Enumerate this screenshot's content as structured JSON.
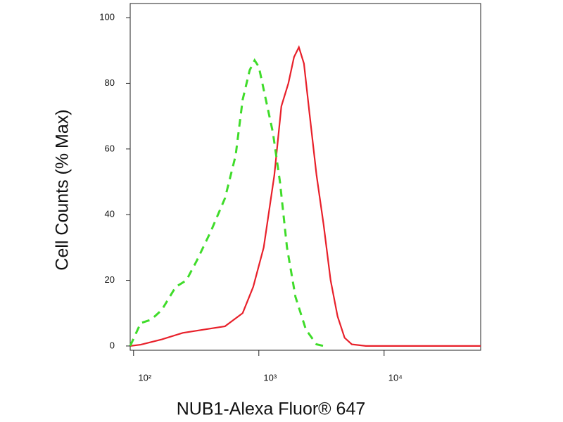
{
  "chart_data": {
    "type": "line",
    "xlabel": "NUB1-Alexa Fluor® 647",
    "ylabel": "Cell Counts (% Max)",
    "xscale": "log",
    "xlim": [
      94,
      59000
    ],
    "ylim": [
      -1.3,
      104.3
    ],
    "xticks": [
      {
        "value": 100,
        "label": "10²"
      },
      {
        "value": 1000,
        "label": "10³"
      },
      {
        "value": 10000,
        "label": "10⁴"
      }
    ],
    "yticks": [
      0,
      20,
      40,
      60,
      80,
      100
    ],
    "series": [
      {
        "color": "#e8202a",
        "style": "solid",
        "x": [
          94,
          114,
          168,
          247,
          365,
          537,
          743,
          902,
          1094,
          1330,
          1514,
          1722,
          1910,
          2089,
          2291,
          2535,
          2890,
          3289,
          3741,
          4256,
          4842,
          5520,
          7145,
          10520,
          59000
        ],
        "values": [
          0,
          0.4,
          2,
          4,
          5,
          6,
          10,
          18,
          30,
          52,
          73,
          80,
          88,
          91,
          86,
          71,
          52,
          37,
          20,
          9,
          2.5,
          0.5,
          0,
          0,
          0
        ]
      },
      {
        "color": "#3fdc2a",
        "style": "dashed",
        "x": [
          94,
          114,
          138,
          168,
          217,
          264,
          320,
          415,
          537,
          653,
          743,
          845,
          925,
          1000,
          1138,
          1295,
          1474,
          1679,
          1959,
          2377,
          2890,
          3289
        ],
        "values": [
          0,
          7,
          8,
          11,
          18,
          20,
          26,
          35,
          45,
          58,
          75,
          84,
          87,
          85,
          75,
          65,
          50,
          30,
          15,
          5,
          0.5,
          0
        ]
      }
    ]
  }
}
